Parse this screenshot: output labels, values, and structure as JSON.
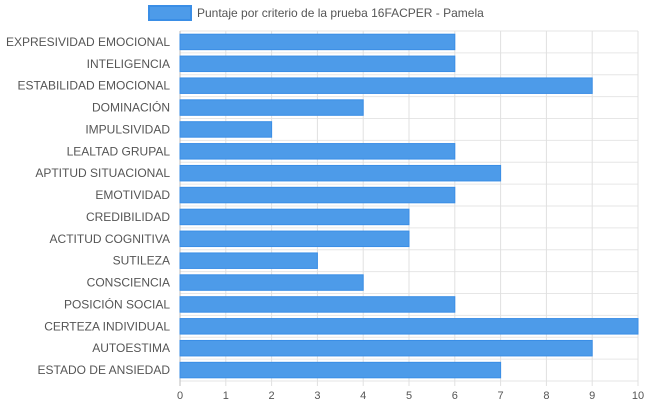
{
  "chart_data": {
    "type": "bar",
    "orientation": "horizontal",
    "categories": [
      "EXPRESIVIDAD EMOCIONAL",
      "INTELIGENCIA",
      "ESTABILIDAD EMOCIONAL",
      "DOMINACIÓN",
      "IMPULSIVIDAD",
      "LEALTAD GRUPAL",
      "APTITUD SITUACIONAL",
      "EMOTIVIDAD",
      "CREDIBILIDAD",
      "ACTITUD COGNITIVA",
      "SUTILEZA",
      "CONSCIENCIA",
      "POSICIÓN SOCIAL",
      "CERTEZA INDIVIDUAL",
      "AUTOESTIMA",
      "ESTADO DE ANSIEDAD"
    ],
    "series": [
      {
        "name": "Puntaje por criterio de la prueba 16FACPER - Pamela",
        "values": [
          6,
          6,
          9,
          4,
          2,
          6,
          7,
          6,
          5,
          5,
          3,
          4,
          6,
          10,
          9,
          7
        ],
        "color": "#4d9be9",
        "border_color": "#3a8ee6"
      }
    ],
    "xlim": [
      0,
      10
    ],
    "x_ticks": [
      "0",
      "1",
      "2",
      "3",
      "4",
      "5",
      "6",
      "7",
      "8",
      "9",
      "10"
    ],
    "grid": true,
    "legend_position": "top"
  }
}
